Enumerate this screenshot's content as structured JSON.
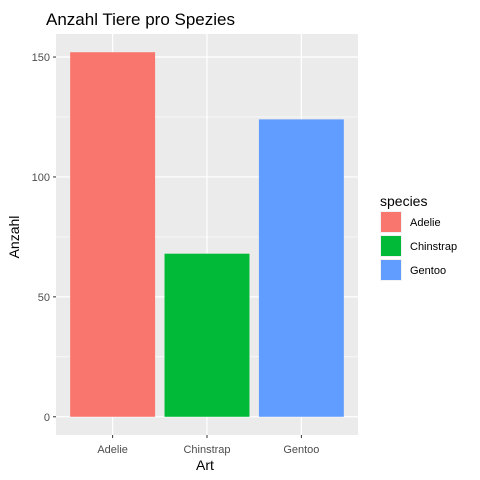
{
  "chart_data": {
    "type": "bar",
    "title": "Anzahl Tiere pro Spezies",
    "xlabel": "Art",
    "ylabel": "Anzahl",
    "categories": [
      "Adelie",
      "Chinstrap",
      "Gentoo"
    ],
    "values": [
      152,
      68,
      124
    ],
    "colors": [
      "#F8766D",
      "#00BA38",
      "#619CFF"
    ],
    "ylim": [
      -7.6,
      159.6
    ],
    "yticks": [
      0,
      50,
      100,
      150
    ],
    "grid": true,
    "panel_background": "#EBEBEB",
    "legend": {
      "title": "species",
      "position": "right",
      "entries": [
        "Adelie",
        "Chinstrap",
        "Gentoo"
      ]
    }
  }
}
